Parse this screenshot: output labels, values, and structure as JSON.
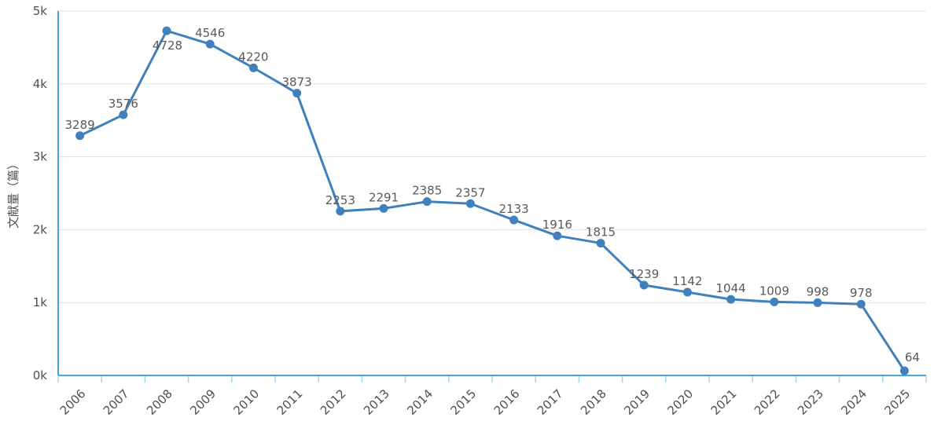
{
  "chart_data": {
    "type": "line",
    "title": "",
    "xlabel": "",
    "ylabel": "文献量（篇）",
    "categories": [
      "2006",
      "2007",
      "2008",
      "2009",
      "2010",
      "2011",
      "2012",
      "2013",
      "2014",
      "2015",
      "2016",
      "2017",
      "2018",
      "2019",
      "2020",
      "2021",
      "2022",
      "2023",
      "2024",
      "2025"
    ],
    "values": [
      3289,
      3576,
      4728,
      4546,
      4220,
      3873,
      2253,
      2291,
      2385,
      2357,
      2133,
      1916,
      1815,
      1239,
      1142,
      1044,
      1009,
      998,
      978,
      64
    ],
    "ylim": [
      0,
      5000
    ],
    "ytick_values": [
      0,
      1000,
      2000,
      3000,
      4000,
      5000
    ],
    "ytick_labels": [
      "0k",
      "1k",
      "2k",
      "3k",
      "4k",
      "5k"
    ],
    "grid": true,
    "legend_position": "none",
    "point_labels_visible": true,
    "x_label_rotation_deg": -45,
    "label_offsets": {
      "2008": {
        "dx": 1,
        "dy": 24
      },
      "2025": {
        "dx": 10,
        "dy": -12
      }
    },
    "colors": {
      "line": "#3f80bd",
      "marker": "#3f80bd",
      "axis_line": "#48a6e0",
      "axis_tick": "#a6d4ef",
      "gridline": "#e0e0e0",
      "point_label_text": "#595959",
      "axis_label_text": "#4f4f4f",
      "background": "#ffffff"
    }
  }
}
